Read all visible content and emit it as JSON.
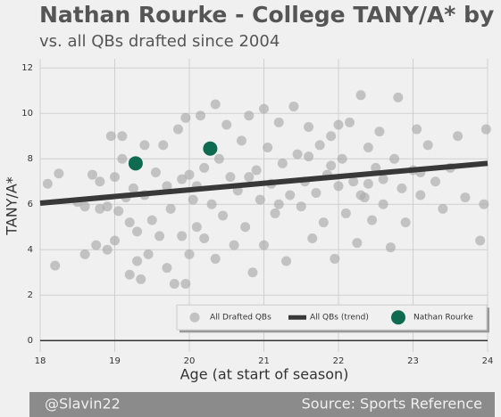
{
  "chart_data": {
    "type": "scatter",
    "title": "Nathan Rourke - College TANY/A* by Age",
    "subtitle": "vs. all QBs drafted since 2004",
    "xlabel": "Age (at start of season)",
    "ylabel": "TANY/A*",
    "xlim": [
      18,
      24
    ],
    "ylim": [
      -0.5,
      12.4
    ],
    "xticks": [
      18,
      19,
      20,
      21,
      22,
      23,
      24
    ],
    "yticks": [
      0,
      2,
      4,
      6,
      8,
      10,
      12
    ],
    "grid": true,
    "legend": "lower right",
    "series": [
      {
        "name": "All Drafted QBs",
        "type": "scatter",
        "color": "#a9a9a9",
        "x": [
          18.1,
          18.2,
          18.25,
          18.5,
          18.6,
          18.6,
          18.7,
          18.75,
          18.8,
          18.8,
          18.9,
          18.9,
          18.95,
          19.0,
          19.0,
          19.05,
          19.1,
          19.1,
          19.15,
          19.2,
          19.2,
          19.25,
          19.3,
          19.3,
          19.35,
          19.4,
          19.4,
          19.45,
          19.5,
          19.55,
          19.6,
          19.65,
          19.7,
          19.7,
          19.75,
          19.8,
          19.85,
          19.9,
          19.9,
          19.95,
          19.95,
          20.0,
          20.0,
          20.05,
          20.1,
          20.15,
          20.2,
          20.2,
          20.3,
          20.35,
          20.35,
          20.4,
          20.45,
          20.5,
          20.55,
          20.6,
          20.65,
          20.7,
          20.75,
          20.8,
          20.85,
          20.9,
          20.95,
          21.0,
          21.0,
          21.05,
          21.1,
          21.15,
          21.2,
          21.25,
          21.3,
          21.35,
          21.4,
          21.45,
          21.5,
          21.55,
          21.6,
          21.65,
          21.7,
          21.75,
          21.8,
          21.85,
          21.9,
          21.95,
          22.0,
          22.05,
          22.1,
          22.15,
          22.2,
          22.25,
          22.3,
          22.35,
          22.4,
          22.45,
          22.5,
          22.55,
          22.6,
          22.7,
          22.75,
          22.8,
          22.85,
          22.9,
          23.0,
          23.05,
          23.1,
          23.2,
          23.3,
          23.4,
          23.5,
          23.6,
          23.7,
          23.9,
          23.95,
          23.98,
          22.3,
          21.9,
          22.6,
          21.2,
          20.8,
          22.0,
          21.6,
          22.4,
          23.1,
          20.1
        ],
        "values": [
          6.9,
          3.3,
          7.35,
          6.1,
          5.9,
          3.8,
          7.3,
          4.2,
          7.0,
          5.8,
          5.9,
          4.0,
          9.0,
          7.2,
          4.4,
          5.7,
          9.0,
          8.0,
          6.3,
          2.9,
          5.2,
          6.7,
          4.8,
          3.5,
          2.7,
          6.4,
          8.6,
          3.8,
          5.3,
          7.4,
          4.6,
          8.6,
          3.2,
          6.8,
          5.8,
          2.5,
          9.3,
          7.1,
          4.6,
          9.8,
          2.5,
          7.3,
          3.8,
          6.2,
          5.0,
          9.9,
          7.6,
          4.5,
          6.0,
          10.4,
          3.6,
          8.0,
          5.5,
          9.5,
          7.2,
          4.2,
          6.6,
          8.8,
          5.0,
          9.9,
          3.0,
          7.5,
          6.2,
          10.2,
          4.2,
          8.5,
          6.9,
          5.6,
          9.6,
          7.8,
          3.5,
          6.4,
          10.3,
          8.2,
          5.9,
          7.0,
          9.4,
          4.5,
          6.5,
          8.6,
          5.2,
          7.3,
          9.0,
          3.6,
          6.8,
          8.0,
          5.6,
          9.6,
          7.0,
          4.3,
          10.8,
          6.3,
          8.5,
          5.3,
          7.6,
          9.2,
          6.0,
          4.1,
          8.0,
          10.7,
          6.7,
          5.2,
          7.5,
          9.3,
          6.4,
          8.6,
          7.0,
          5.8,
          7.6,
          9.0,
          6.3,
          4.4,
          6.0,
          9.3,
          6.4,
          7.7,
          7.1,
          6.0,
          7.2,
          9.5,
          8.1,
          6.9,
          7.4,
          6.8
        ]
      },
      {
        "name": "All QBs (trend)",
        "type": "line",
        "color": "#383838",
        "x": [
          18,
          24
        ],
        "values": [
          6.05,
          7.8
        ]
      },
      {
        "name": "Nathan Rourke",
        "type": "scatter",
        "color": "#0e6b4f",
        "x": [
          19.28,
          20.28
        ],
        "values": [
          7.8,
          8.45
        ]
      }
    ]
  },
  "footer": {
    "left": "@Slavin22",
    "right": "Source: Sports Reference"
  }
}
